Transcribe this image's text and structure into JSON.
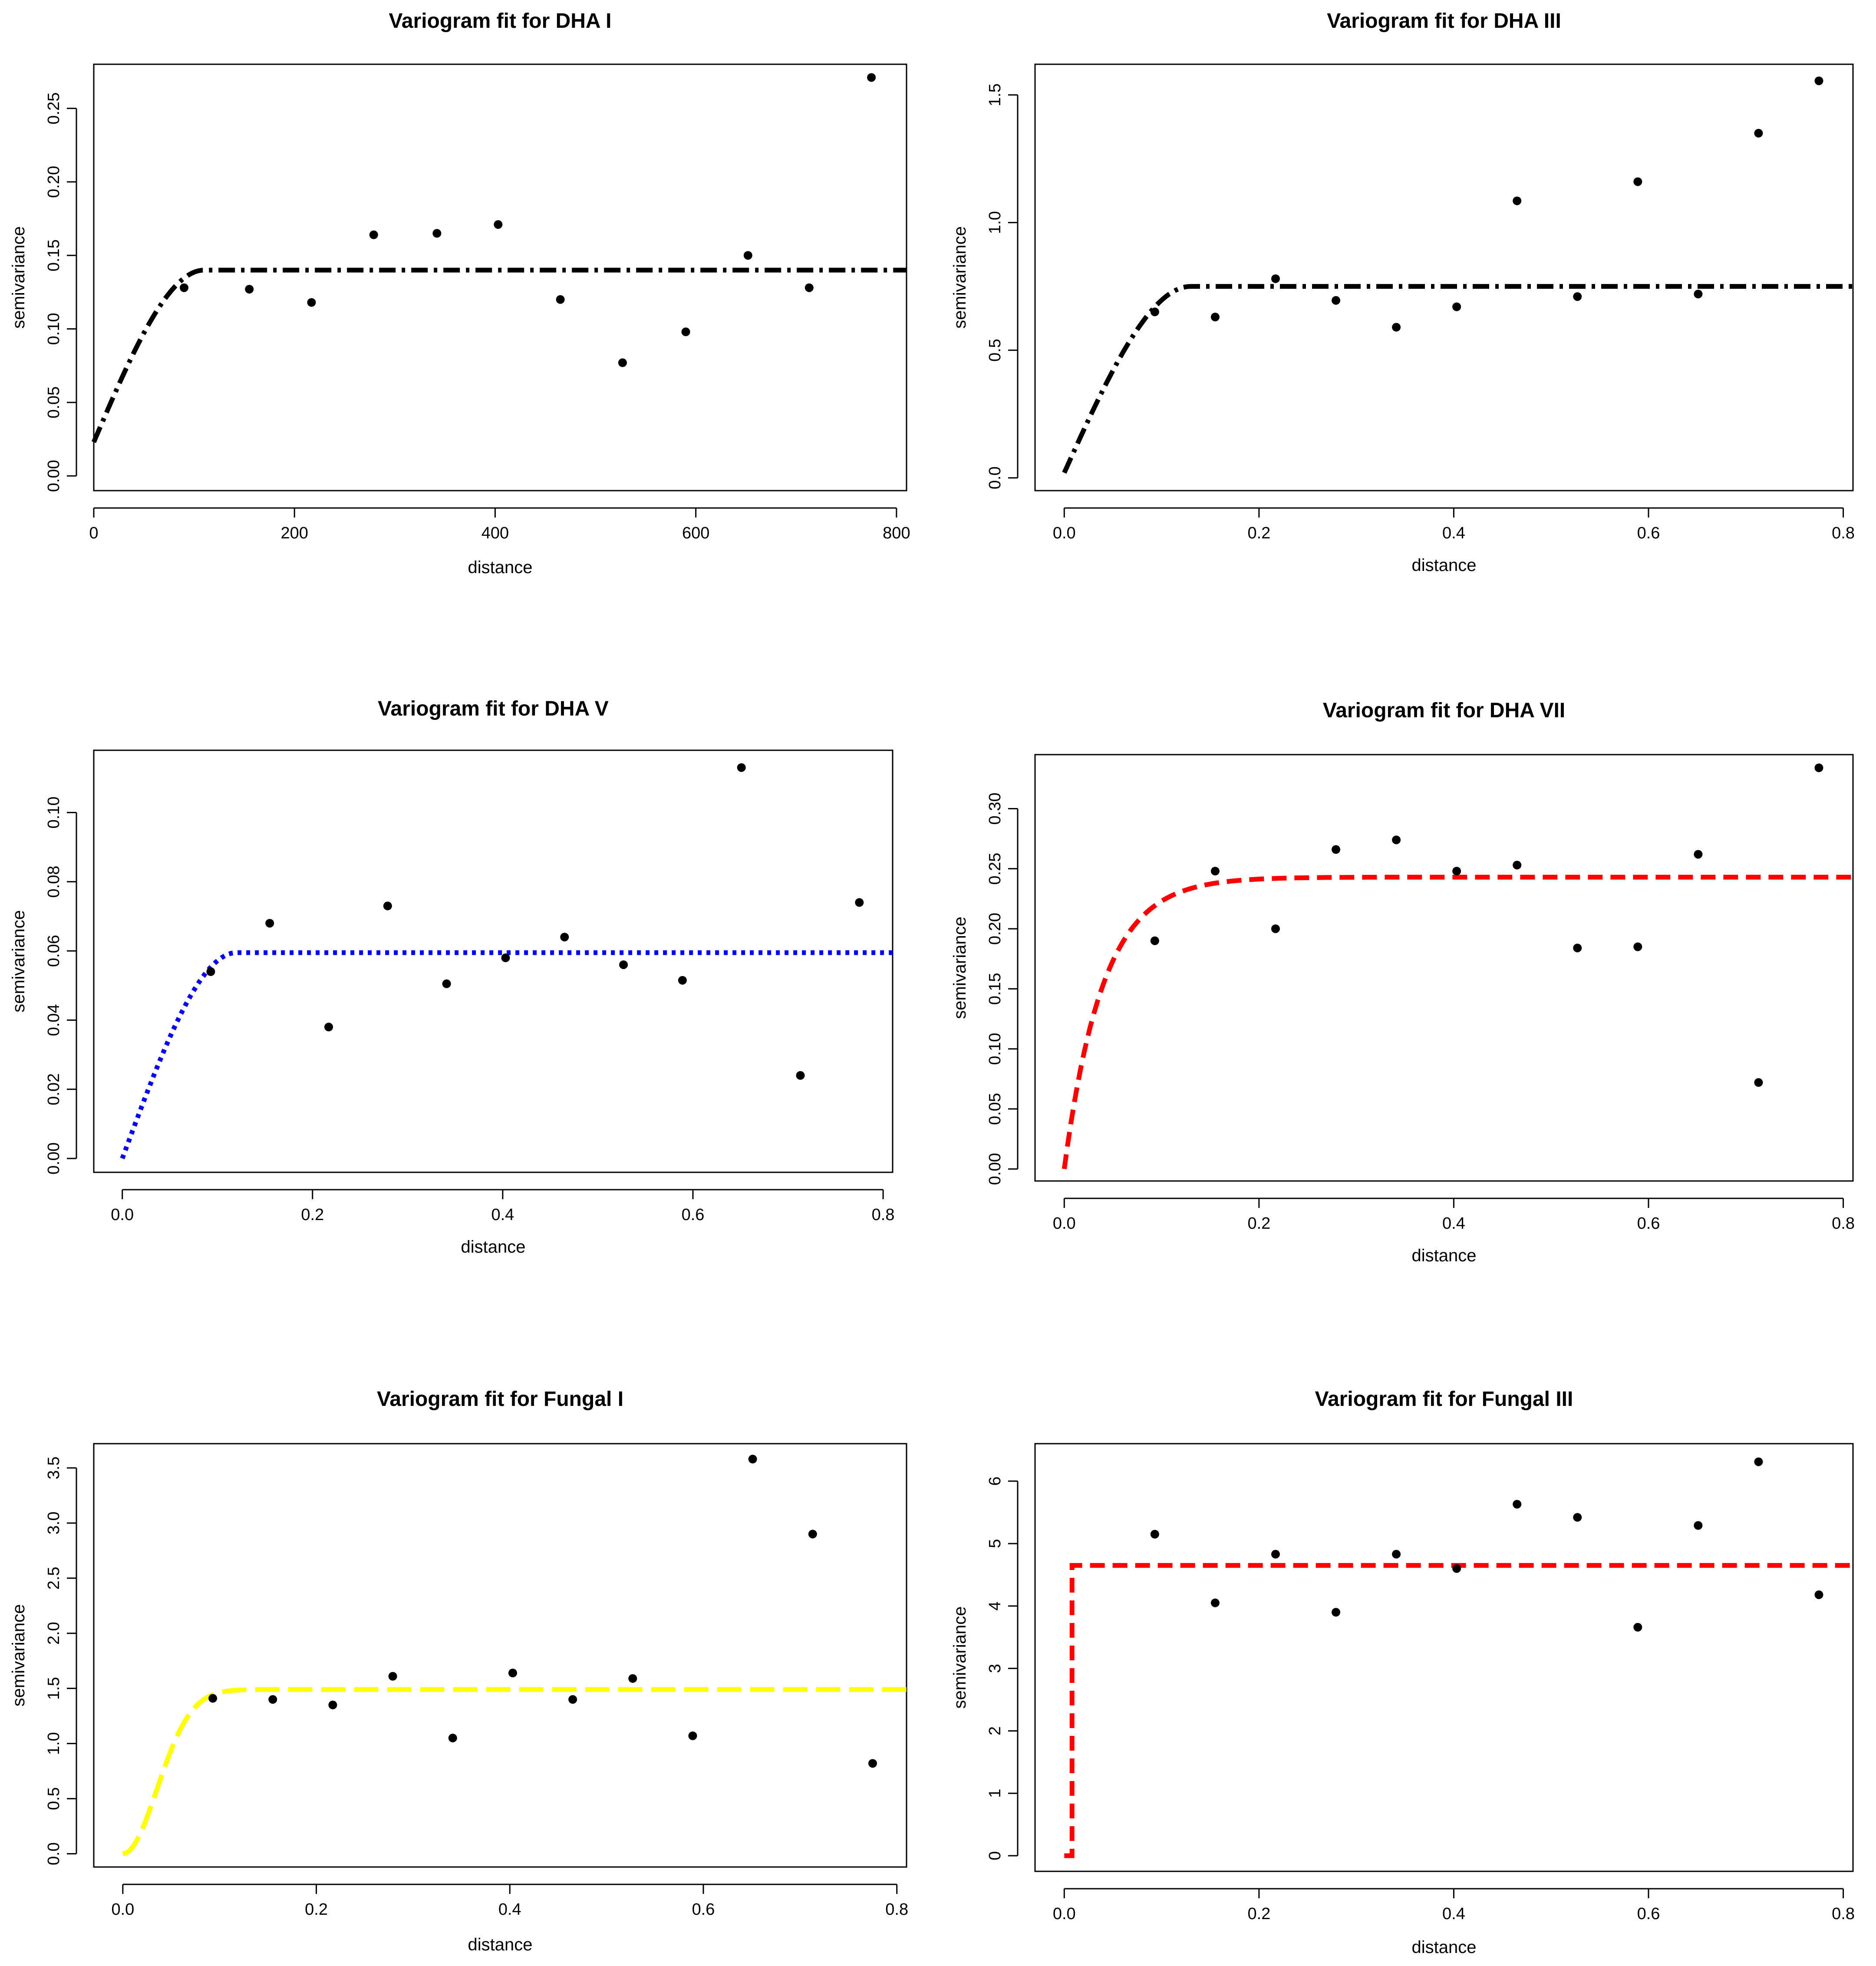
{
  "chart_data": [
    {
      "type": "scatter",
      "title": "Variogram fit for DHA I",
      "xlabel": "distance",
      "ylabel": "semivariance",
      "xlim": [
        0,
        810
      ],
      "ylim": [
        -0.01,
        0.28
      ],
      "xticks": [
        0,
        200,
        400,
        600,
        800
      ],
      "xtick_labels": [
        "0",
        "200",
        "400",
        "600",
        "800"
      ],
      "yticks": [
        0,
        0.05,
        0.1,
        0.15,
        0.2,
        0.25
      ],
      "ytick_labels": [
        "0.00",
        "0.05",
        "0.10",
        "0.15",
        "0.20",
        "0.25"
      ],
      "points": [
        [
          90,
          0.128
        ],
        [
          155,
          0.127
        ],
        [
          217,
          0.118
        ],
        [
          279,
          0.164
        ],
        [
          342,
          0.165
        ],
        [
          403,
          0.171
        ],
        [
          465,
          0.12
        ],
        [
          527,
          0.077
        ],
        [
          590,
          0.098
        ],
        [
          652,
          0.15
        ],
        [
          713,
          0.128
        ],
        [
          775,
          0.271
        ]
      ],
      "model": {
        "kind": "spherical",
        "nugget": 0.023,
        "sill": 0.14,
        "range": 110,
        "x_end": 810
      },
      "line_color": "#000000",
      "line_style": "dashdot"
    },
    {
      "type": "scatter",
      "title": "Variogram fit for DHA III",
      "xlabel": "distance",
      "ylabel": "semivariance",
      "xlim": [
        -0.03,
        0.81
      ],
      "ylim": [
        -0.05,
        1.62
      ],
      "xticks": [
        0,
        0.2,
        0.4,
        0.6,
        0.8
      ],
      "xtick_labels": [
        "0.0",
        "0.2",
        "0.4",
        "0.6",
        "0.8"
      ],
      "yticks": [
        0,
        0.5,
        1,
        1.5
      ],
      "ytick_labels": [
        "0.0",
        "0.5",
        "1.0",
        "1.5"
      ],
      "points": [
        [
          0.093,
          0.65
        ],
        [
          0.155,
          0.63
        ],
        [
          0.217,
          0.78
        ],
        [
          0.279,
          0.695
        ],
        [
          0.341,
          0.59
        ],
        [
          0.403,
          0.67
        ],
        [
          0.465,
          1.085
        ],
        [
          0.527,
          0.71
        ],
        [
          0.589,
          1.16
        ],
        [
          0.651,
          0.72
        ],
        [
          0.713,
          1.35
        ],
        [
          0.775,
          1.555
        ]
      ],
      "model": {
        "kind": "spherical",
        "nugget": 0.02,
        "sill": 0.75,
        "range": 0.13,
        "x_end": 0.81
      },
      "line_color": "#000000",
      "line_style": "dashdot"
    },
    {
      "type": "scatter",
      "title": "Variogram fit for DHA V",
      "xlabel": "distance",
      "ylabel": "semivariance",
      "xlim": [
        -0.03,
        0.81
      ],
      "ylim": [
        -0.004,
        0.118
      ],
      "xticks": [
        0,
        0.2,
        0.4,
        0.6,
        0.8
      ],
      "xtick_labels": [
        "0.0",
        "0.2",
        "0.4",
        "0.6",
        "0.8"
      ],
      "yticks": [
        0,
        0.02,
        0.04,
        0.06,
        0.08,
        0.1
      ],
      "ytick_labels": [
        "0.00",
        "0.02",
        "0.04",
        "0.06",
        "0.08",
        "0.10"
      ],
      "points": [
        [
          0.093,
          0.054
        ],
        [
          0.155,
          0.068
        ],
        [
          0.217,
          0.038
        ],
        [
          0.279,
          0.073
        ],
        [
          0.341,
          0.0505
        ],
        [
          0.403,
          0.058
        ],
        [
          0.465,
          0.064
        ],
        [
          0.527,
          0.056
        ],
        [
          0.589,
          0.0515
        ],
        [
          0.651,
          0.113
        ],
        [
          0.713,
          0.024
        ],
        [
          0.775,
          0.074
        ]
      ],
      "model": {
        "kind": "spherical",
        "nugget": 0,
        "sill": 0.0595,
        "range": 0.12,
        "x_end": 0.81
      },
      "line_color": "#0000ff",
      "line_style": "dotted"
    },
    {
      "type": "scatter",
      "title": "Variogram fit for DHA VII",
      "xlabel": "distance",
      "ylabel": "semivariance",
      "xlim": [
        -0.03,
        0.81
      ],
      "ylim": [
        -0.01,
        0.345
      ],
      "xticks": [
        0,
        0.2,
        0.4,
        0.6,
        0.8
      ],
      "xtick_labels": [
        "0.0",
        "0.2",
        "0.4",
        "0.6",
        "0.8"
      ],
      "yticks": [
        0,
        0.05,
        0.1,
        0.15,
        0.2,
        0.25,
        0.3
      ],
      "ytick_labels": [
        "0.00",
        "0.05",
        "0.10",
        "0.15",
        "0.20",
        "0.25",
        "0.30"
      ],
      "points": [
        [
          0.093,
          0.19
        ],
        [
          0.155,
          0.248
        ],
        [
          0.217,
          0.2
        ],
        [
          0.279,
          0.266
        ],
        [
          0.341,
          0.274
        ],
        [
          0.403,
          0.248
        ],
        [
          0.465,
          0.253
        ],
        [
          0.527,
          0.184
        ],
        [
          0.589,
          0.185
        ],
        [
          0.651,
          0.262
        ],
        [
          0.713,
          0.072
        ],
        [
          0.775,
          0.334
        ]
      ],
      "model": {
        "kind": "exponential",
        "nugget": 0,
        "sill": 0.243,
        "range": 0.04,
        "x_end": 0.81
      },
      "line_color": "#ff0000",
      "line_style": "dashed"
    },
    {
      "type": "scatter",
      "title": "Variogram fit for Fungal I",
      "xlabel": "distance",
      "ylabel": "semivariance",
      "xlim": [
        -0.03,
        0.81
      ],
      "ylim": [
        -0.12,
        3.72
      ],
      "xticks": [
        0,
        0.2,
        0.4,
        0.6,
        0.8
      ],
      "xtick_labels": [
        "0.0",
        "0.2",
        "0.4",
        "0.6",
        "0.8"
      ],
      "yticks": [
        0,
        0.5,
        1,
        1.5,
        2,
        2.5,
        3,
        3.5
      ],
      "ytick_labels": [
        "0.0",
        "0.5",
        "1.0",
        "1.5",
        "2.0",
        "2.5",
        "3.0",
        "3.5"
      ],
      "points": [
        [
          0.093,
          1.41
        ],
        [
          0.155,
          1.4
        ],
        [
          0.217,
          1.35
        ],
        [
          0.279,
          1.61
        ],
        [
          0.341,
          1.05
        ],
        [
          0.403,
          1.64
        ],
        [
          0.465,
          1.4
        ],
        [
          0.527,
          1.59
        ],
        [
          0.589,
          1.07
        ],
        [
          0.651,
          3.58
        ],
        [
          0.713,
          2.9
        ],
        [
          0.775,
          0.82
        ]
      ],
      "model": {
        "kind": "gaussian",
        "nugget": 0,
        "sill": 1.49,
        "range": 0.05,
        "x_end": 0.81
      },
      "line_color": "#ffff00",
      "line_style": "longdash"
    },
    {
      "type": "scatter",
      "title": "Variogram fit for Fungal III",
      "xlabel": "distance",
      "ylabel": "semivariance",
      "xlim": [
        -0.03,
        0.81
      ],
      "ylim": [
        -0.25,
        6.6
      ],
      "xticks": [
        0,
        0.2,
        0.4,
        0.6,
        0.8
      ],
      "xtick_labels": [
        "0.0",
        "0.2",
        "0.4",
        "0.6",
        "0.8"
      ],
      "yticks": [
        0,
        1,
        2,
        3,
        4,
        5,
        6
      ],
      "ytick_labels": [
        "0",
        "1",
        "2",
        "3",
        "4",
        "5",
        "6"
      ],
      "points": [
        [
          0.093,
          5.15
        ],
        [
          0.155,
          4.05
        ],
        [
          0.217,
          4.83
        ],
        [
          0.279,
          3.9
        ],
        [
          0.341,
          4.83
        ],
        [
          0.403,
          4.6
        ],
        [
          0.465,
          5.63
        ],
        [
          0.527,
          5.42
        ],
        [
          0.589,
          3.66
        ],
        [
          0.651,
          5.29
        ],
        [
          0.713,
          6.31
        ],
        [
          0.775,
          4.18
        ]
      ],
      "model": {
        "kind": "step",
        "nugget": 0,
        "sill": 4.65,
        "range": 0.008,
        "x_end": 0.81
      },
      "line_color": "#ff0000",
      "line_style": "dashed"
    }
  ]
}
